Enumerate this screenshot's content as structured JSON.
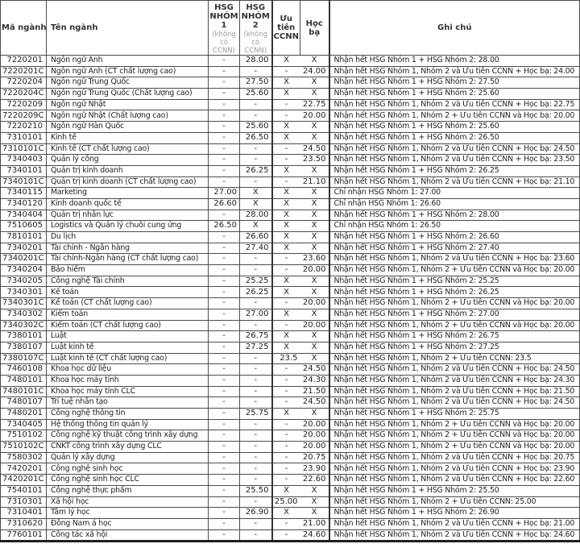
{
  "colors": {
    "border": "#4d4d4d",
    "heavy_border": "#333333",
    "header_text": "#333333",
    "body_text": "#1f1f1f",
    "subnote_text": "#9b9b9b",
    "background": "#ffffff"
  },
  "header": {
    "col_code": "Mã ngành",
    "col_name": "Tên ngành",
    "col_hsg1": "HSG NHÓM 1",
    "col_hsg2": "HSG NHÓM 2",
    "col_hsg_note": "(không có CCNN)",
    "col_uutien": "Ưu tiên CCNN",
    "col_hocba": "Học bạ",
    "col_ghichu": "Ghi chú"
  },
  "rows": [
    {
      "code": "7220201",
      "name": "Ngôn ngữ Anh",
      "hsg1": "-",
      "hsg2": "28.00",
      "uu_tien": "X",
      "hoc_ba": "X",
      "note": "Nhận hết HSG Nhóm 1 + HSG Nhóm 2: 28.00"
    },
    {
      "code": "7220201C",
      "name": "Ngôn ngữ Anh (CT chất lượng cao)",
      "hsg1": "-",
      "hsg2": "-",
      "uu_tien": "-",
      "hoc_ba": "24.00",
      "note": "Nhận hết HSG Nhóm 1, Nhóm 2 và Ưu tiên CCNN + Học bạ: 24.00"
    },
    {
      "code": "7220204",
      "name": "Ngôn ngữ Trung Quốc",
      "hsg1": "-",
      "hsg2": "27.50",
      "uu_tien": "X",
      "hoc_ba": "X",
      "note": "Nhận hết HSG Nhóm 1 + HSG Nhóm 2: 27.50"
    },
    {
      "code": "7220204C",
      "name": "Ngôn ngữ Trung Quốc (Chất lượng cao)",
      "hsg1": "-",
      "hsg2": "25.60",
      "uu_tien": "X",
      "hoc_ba": "X",
      "note": "Nhận hết HSG Nhóm 1 + HSG Nhóm 2: 25.60"
    },
    {
      "code": "7220209",
      "name": "Ngôn ngữ Nhật",
      "hsg1": "-",
      "hsg2": "-",
      "uu_tien": "-",
      "hoc_ba": "22.75",
      "note": "Nhận hết HSG Nhóm 1, Nhóm 2 và Ưu tiên CCNN + Học bạ: 22.75"
    },
    {
      "code": "7220209C",
      "name": "Ngôn ngữ Nhật  (Chất lượng cao)",
      "hsg1": "-",
      "hsg2": "-",
      "uu_tien": "-",
      "hoc_ba": "20.00",
      "note": "Nhận hết HSG Nhóm 1, Nhóm 2 + Ưu tiên CCNN và Học bạ: 20.00"
    },
    {
      "code": "7220210",
      "name": "Ngôn ngữ Hàn Quốc",
      "hsg1": "-",
      "hsg2": "25.60",
      "uu_tien": "X",
      "hoc_ba": "X",
      "note": "Nhận hết HSG Nhóm 1 + HSG Nhóm 2: 25.60"
    },
    {
      "code": "7310101",
      "name": "Kinh tế",
      "hsg1": "-",
      "hsg2": "26.50",
      "uu_tien": "X",
      "hoc_ba": "X",
      "note": "Nhận hết HSG Nhóm 1 + HSG Nhóm 2: 26.50"
    },
    {
      "code": "7310101C",
      "name": "Kinh tế (CT chất lượng cao)",
      "hsg1": "-",
      "hsg2": "-",
      "uu_tien": "-",
      "hoc_ba": "24.50",
      "note": "Nhận hết HSG Nhóm 1, Nhóm 2 và Ưu tiên CCNN + Học bạ: 24.50"
    },
    {
      "code": "7340403",
      "name": "Quản lý công",
      "hsg1": "-",
      "hsg2": "-",
      "uu_tien": "-",
      "hoc_ba": "23.50",
      "note": "Nhận hết HSG Nhóm 1, Nhóm 2 và Ưu tiên CCNN + Học bạ: 23.50"
    },
    {
      "code": "7340101",
      "name": "Quản trị kinh doanh",
      "hsg1": "-",
      "hsg2": "26.25",
      "uu_tien": "X",
      "hoc_ba": "X",
      "note": "Nhận hết HSG Nhóm 1 + HSG Nhóm 2: 26.25"
    },
    {
      "code": "7340101C",
      "name": "Quản trị kinh doanh (CT chất lượng cao)",
      "hsg1": "-",
      "hsg2": "-",
      "uu_tien": "-",
      "hoc_ba": "21.10",
      "note": "Nhận hết HSG Nhóm 1, Nhóm 2 và Ưu tiên CCNN + Học bạ: 21.10"
    },
    {
      "code": "7340115",
      "name": "Marketing",
      "hsg1": "27.00",
      "hsg2": "X",
      "uu_tien": "X",
      "hoc_ba": "X",
      "note": "Chỉ nhận HSG Nhóm 1: 27.00"
    },
    {
      "code": "7340120",
      "name": "Kinh doanh quốc tế",
      "hsg1": "26.60",
      "hsg2": "X",
      "uu_tien": "X",
      "hoc_ba": "X",
      "note": "Chỉ nhận HSG Nhóm 1: 26.60"
    },
    {
      "code": "7340404",
      "name": "Quản trị nhân lực",
      "hsg1": "-",
      "hsg2": "28.00",
      "uu_tien": "X",
      "hoc_ba": "X",
      "note": "Nhận hết HSG Nhóm 1 + HSG Nhóm 2: 28.00"
    },
    {
      "code": "7510605",
      "name": "Logistics và Quản lý chuỗi cung ứng",
      "hsg1": "26.50",
      "hsg2": "X",
      "uu_tien": "X",
      "hoc_ba": "X",
      "note": "Chỉ nhận HSG Nhóm 1: 26.50"
    },
    {
      "code": "7810101",
      "name": "Du lịch",
      "hsg1": "-",
      "hsg2": "26.60",
      "uu_tien": "X",
      "hoc_ba": "X",
      "note": "Nhận hết HSG Nhóm 1 + HSG Nhóm 2: 26.60"
    },
    {
      "code": "7340201",
      "name": "Tài chính - Ngân hàng",
      "hsg1": "-",
      "hsg2": "27.40",
      "uu_tien": "X",
      "hoc_ba": "X",
      "note": "Nhận hết HSG Nhóm 1 + HSG Nhóm 2: 27.40"
    },
    {
      "code": "7340201C",
      "name": "Tài chính-Ngân hàng (CT chất lượng cao)",
      "hsg1": "-",
      "hsg2": "-",
      "uu_tien": "-",
      "hoc_ba": "23.60",
      "note": "Nhận hết HSG Nhóm 1, Nhóm 2 và Ưu tiên CCNN + Học bạ: 23.60"
    },
    {
      "code": "7340204",
      "name": "Bảo hiểm",
      "hsg1": "-",
      "hsg2": "-",
      "uu_tien": "-",
      "hoc_ba": "20.00",
      "note": "Nhận hết HSG Nhóm 1, Nhóm 2 + Ưu tiên CCNN và Học bạ: 20.00"
    },
    {
      "code": "7340205",
      "name": "Công nghệ Tài chính",
      "hsg1": "-",
      "hsg2": "25.25",
      "uu_tien": "X",
      "hoc_ba": "X",
      "note": "Nhận hết HSG Nhóm 1 + HSG Nhóm 2: 25.25"
    },
    {
      "code": "7340301",
      "name": "Kế toán",
      "hsg1": "-",
      "hsg2": "26.25",
      "uu_tien": "X",
      "hoc_ba": "X",
      "note": "Nhận hết HSG Nhóm 1 + HSG Nhóm 2: 26.25"
    },
    {
      "code": "7340301C",
      "name": "Kế toán (CT chất lượng cao)",
      "hsg1": "-",
      "hsg2": "-",
      "uu_tien": "-",
      "hoc_ba": "20.00",
      "note": "Nhận hết HSG Nhóm 1, Nhóm 2 + Ưu tiên CCNN và Học bạ: 20.00"
    },
    {
      "code": "7340302",
      "name": "Kiểm toán",
      "hsg1": "-",
      "hsg2": "27.00",
      "uu_tien": "X",
      "hoc_ba": "X",
      "note": "Nhận hết HSG Nhóm 1 + HSG Nhóm 2: 27.00"
    },
    {
      "code": "7340302C",
      "name": "Kiểm toán (CT chất lượng cao)",
      "hsg1": "-",
      "hsg2": "-",
      "uu_tien": "-",
      "hoc_ba": "20.00",
      "note": "Nhận hết HSG Nhóm 1, Nhóm 2 + Ưu tiên CCNN và Học bạ: 20.00"
    },
    {
      "code": "7380101",
      "name": "Luật",
      "hsg1": "-",
      "hsg2": "26.75",
      "uu_tien": "X",
      "hoc_ba": "X",
      "note": "Nhận hết HSG Nhóm 1 + HSG Nhóm 2: 26.75"
    },
    {
      "code": "7380107",
      "name": "Luật kinh tế",
      "hsg1": "-",
      "hsg2": "27.25",
      "uu_tien": "X",
      "hoc_ba": "X",
      "note": "Nhận hết HSG Nhóm 1 + HSG Nhóm 2: 27.25"
    },
    {
      "code": "7380107C",
      "name": "Luật kinh tế (CT chất lượng cao)",
      "hsg1": "-",
      "hsg2": "-",
      "uu_tien": "23.5",
      "hoc_ba": "X",
      "note": "Nhận hết HSG Nhóm 1, Nhóm 2 + Ưu tiên CCNN: 23.5"
    },
    {
      "code": "7460108",
      "name": "Khoa học dữ liệu",
      "hsg1": "-",
      "hsg2": "-",
      "uu_tien": "-",
      "hoc_ba": "24.50",
      "note": "Nhận hết HSG Nhóm 1, Nhóm 2 và Ưu tiên CCNN + Học bạ: 24.50"
    },
    {
      "code": "7480101",
      "name": "Khoa học máy tính",
      "hsg1": "-",
      "hsg2": "-",
      "uu_tien": "-",
      "hoc_ba": "24.30",
      "note": "Nhận hết HSG Nhóm 1, Nhóm 2 và Ưu tiên CCNN + Học bạ: 24.30"
    },
    {
      "code": "7480101C",
      "name": "Khoa học máy tính CLC",
      "hsg1": "-",
      "hsg2": "-",
      "uu_tien": "-",
      "hoc_ba": "21.50",
      "note": "Nhận hết HSG Nhóm 1, Nhóm 2 và Ưu tiên CCNN + Học bạ: 21.50"
    },
    {
      "code": "7480107",
      "name": "Trí tuệ nhân tạo",
      "hsg1": "-",
      "hsg2": "-",
      "uu_tien": "-",
      "hoc_ba": "24.50",
      "note": "Nhận hết HSG Nhóm 1, Nhóm 2 và Ưu tiên CCNN + Học bạ: 24.50"
    },
    {
      "code": "7480201",
      "name": "Công nghệ thông tin",
      "hsg1": "-",
      "hsg2": "25.75",
      "uu_tien": "X",
      "hoc_ba": "X",
      "note": "Nhận hết HSG Nhóm 1 + HSG Nhóm 2: 25.75"
    },
    {
      "code": "7340405",
      "name": "Hệ thống thông tin quản lý",
      "hsg1": "-",
      "hsg2": "-",
      "uu_tien": "-",
      "hoc_ba": "20.00",
      "note": "Nhận hết HSG Nhóm 1, Nhóm 2 + Ưu tiên CCNN và Học bạ: 20.00"
    },
    {
      "code": "7510102",
      "name": "Công nghệ kỹ thuật công trình xây dựng",
      "hsg1": "-",
      "hsg2": "-",
      "uu_tien": "-",
      "hoc_ba": "20.00",
      "note": "Nhận hết HSG Nhóm 1, Nhóm 2 + Ưu tiên CCNN và Học bạ: 20.00"
    },
    {
      "code": "7510102C",
      "name": "CNKT công trình xây dựng CLC",
      "hsg1": "-",
      "hsg2": "-",
      "uu_tien": "-",
      "hoc_ba": "20.00",
      "note": "Nhận hết HSG Nhóm 1, Nhóm 2 + Ưu tiên CCNN và Học bạ: 20.00"
    },
    {
      "code": "7580302",
      "name": "Quản lý xây dựng",
      "hsg1": "-",
      "hsg2": "-",
      "uu_tien": "-",
      "hoc_ba": "20.75",
      "note": "Nhận hết HSG Nhóm 1, Nhóm 2 và Ưu tiên CCNN + Học bạ: 20.75"
    },
    {
      "code": "7420201",
      "name": "Công nghệ sinh học",
      "hsg1": "-",
      "hsg2": "-",
      "uu_tien": "-",
      "hoc_ba": "23.90",
      "note": "Nhận hết HSG Nhóm 1, Nhóm 2 và Ưu tiên CCNN + Học bạ: 23.90"
    },
    {
      "code": "7420201C",
      "name": "Công nghệ sinh học CLC",
      "hsg1": "-",
      "hsg2": "-",
      "uu_tien": "-",
      "hoc_ba": "22.60",
      "note": "Nhận hết HSG Nhóm 1, Nhóm 2 và Ưu tiên CCNN + Học bạ: 22.60"
    },
    {
      "code": "7540101",
      "name": "Công nghệ thực phẩm",
      "hsg1": "-",
      "hsg2": "25.50",
      "uu_tien": "X",
      "hoc_ba": "X",
      "note": "Nhận hết HSG Nhóm 1 + HSG Nhóm 2: 25.50"
    },
    {
      "code": "7310301",
      "name": "Xã hội học",
      "hsg1": "-",
      "hsg2": "-",
      "uu_tien": "25.00",
      "hoc_ba": "X",
      "note": "Nhận hết HSG Nhóm 1, Nhóm 2 + Ưu tiên CCNN: 25.00"
    },
    {
      "code": "7310401",
      "name": "Tâm lý học",
      "hsg1": "-",
      "hsg2": "26.90",
      "uu_tien": "X",
      "hoc_ba": "X",
      "note": "Nhận hết HSG Nhóm 1 + HSG Nhóm 2: 26.90"
    },
    {
      "code": "7310620",
      "name": "Đông Nam á học",
      "hsg1": "-",
      "hsg2": "-",
      "uu_tien": "-",
      "hoc_ba": "21.00",
      "note": "Nhận hết HSG Nhóm 1, Nhóm 2 và Ưu tiên CCNN + Học bạ: 21.00"
    },
    {
      "code": "7760101",
      "name": "Công tác xã hội",
      "hsg1": "-",
      "hsg2": "-",
      "uu_tien": "-",
      "hoc_ba": "24.60",
      "note": "Nhận hết HSG Nhóm 1, Nhóm 2 và Ưu tiên CCNN + Học bạ: 24.60"
    }
  ]
}
